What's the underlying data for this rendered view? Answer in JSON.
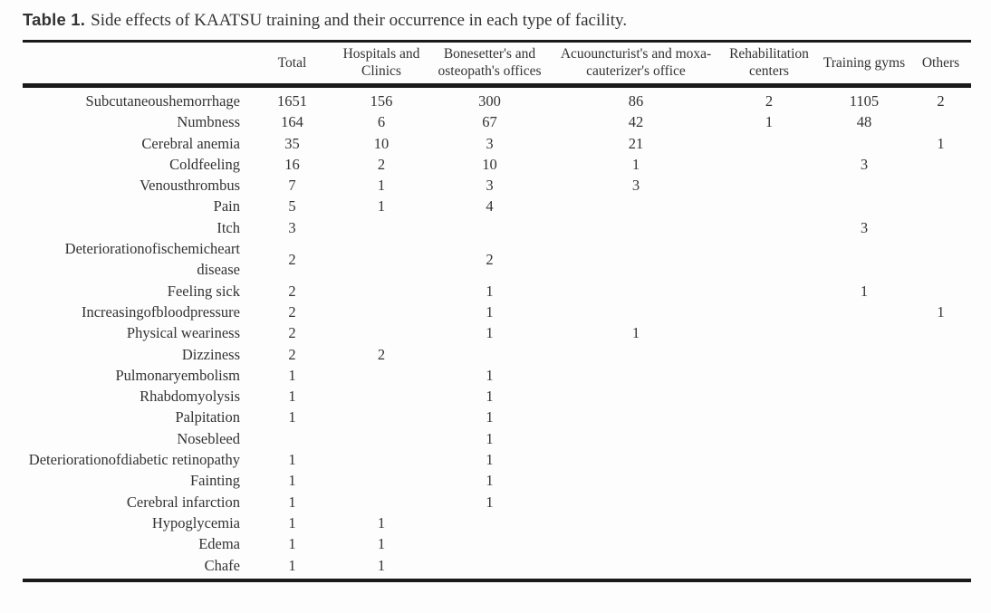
{
  "caption": {
    "label": "Table 1.",
    "text": "Side effects of KAATSU training and their occurrence in each type of facility."
  },
  "colors": {
    "text": "#333333",
    "rule": "#1a1a1a",
    "background": "#fdfdfd"
  },
  "table": {
    "columns": [
      {
        "name": "side-effect",
        "label": ""
      },
      {
        "name": "total",
        "label": "Total"
      },
      {
        "name": "hospitals-and-clinics",
        "label": "Hospitals and Clinics"
      },
      {
        "name": "bonesetters-and-osteopaths-offices",
        "label": "Bonesetter's and osteopath's offices"
      },
      {
        "name": "acupuncturists-and-moxa-cauterizers-office",
        "label": "Acuouncturist's and moxa-cauterizer's office"
      },
      {
        "name": "rehabilitation-centers",
        "label": "Rehabilitation centers"
      },
      {
        "name": "training-gyms",
        "label": "Training gyms"
      },
      {
        "name": "others",
        "label": "Others"
      }
    ],
    "rows": [
      {
        "label": "Subcutaneoushemorrhage",
        "values": [
          "1651",
          "156",
          "300",
          "86",
          "2",
          "1105",
          "2"
        ]
      },
      {
        "label": "Numbness",
        "values": [
          "164",
          "6",
          "67",
          "42",
          "1",
          "48",
          ""
        ]
      },
      {
        "label": "Cerebral anemia",
        "values": [
          "35",
          "10",
          "3",
          "21",
          "",
          "",
          "1"
        ]
      },
      {
        "label": "Coldfeeling",
        "values": [
          "16",
          "2",
          "10",
          "1",
          "",
          "3",
          ""
        ]
      },
      {
        "label": "Venousthrombus",
        "values": [
          "7",
          "1",
          "3",
          "3",
          "",
          "",
          ""
        ]
      },
      {
        "label": "Pain",
        "values": [
          "5",
          "1",
          "4",
          "",
          "",
          "",
          ""
        ]
      },
      {
        "label": "Itch",
        "values": [
          "3",
          "",
          "",
          "",
          "",
          "3",
          ""
        ]
      },
      {
        "label": "Deteriorationofischemicheart disease",
        "values": [
          "2",
          "",
          "2",
          "",
          "",
          "",
          ""
        ]
      },
      {
        "label": "Feeling sick",
        "values": [
          "2",
          "",
          "1",
          "",
          "",
          "1",
          ""
        ]
      },
      {
        "label": "Increasingofbloodpressure",
        "values": [
          "2",
          "",
          "1",
          "",
          "",
          "",
          "1"
        ]
      },
      {
        "label": "Physical weariness",
        "values": [
          "2",
          "",
          "1",
          "1",
          "",
          "",
          ""
        ]
      },
      {
        "label": "Dizziness",
        "values": [
          "2",
          "2",
          "",
          "",
          "",
          "",
          ""
        ]
      },
      {
        "label": "Pulmonaryembolism",
        "values": [
          "1",
          "",
          "1",
          "",
          "",
          "",
          ""
        ]
      },
      {
        "label": "Rhabdomyolysis",
        "values": [
          "1",
          "",
          "1",
          "",
          "",
          "",
          ""
        ]
      },
      {
        "label": "Palpitation",
        "values": [
          "1",
          "",
          "1",
          "",
          "",
          "",
          ""
        ]
      },
      {
        "label": "Nosebleed",
        "values": [
          "",
          "",
          "1",
          "",
          "",
          "",
          ""
        ]
      },
      {
        "label": "Deteriorationofdiabetic retinopathy",
        "values": [
          "1",
          "",
          "1",
          "",
          "",
          "",
          ""
        ]
      },
      {
        "label": "Fainting",
        "values": [
          "1",
          "",
          "1",
          "",
          "",
          "",
          ""
        ]
      },
      {
        "label": "Cerebral infarction",
        "values": [
          "1",
          "",
          "1",
          "",
          "",
          "",
          ""
        ]
      },
      {
        "label": "Hypoglycemia",
        "values": [
          "1",
          "1",
          "",
          "",
          "",
          "",
          ""
        ]
      },
      {
        "label": "Edema",
        "values": [
          "1",
          "1",
          "",
          "",
          "",
          "",
          ""
        ]
      },
      {
        "label": "Chafe",
        "values": [
          "1",
          "1",
          "",
          "",
          "",
          "",
          ""
        ]
      }
    ]
  }
}
